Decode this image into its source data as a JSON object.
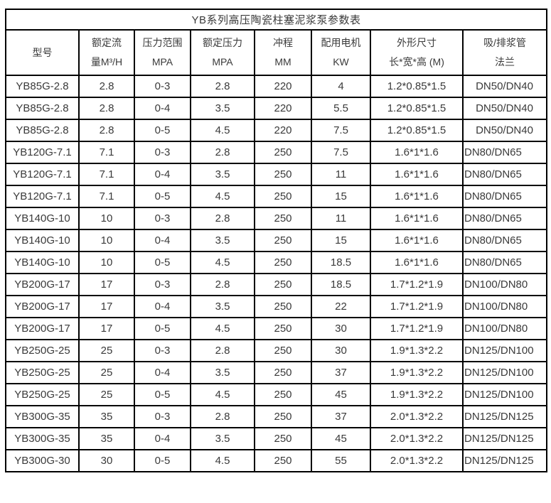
{
  "table": {
    "title": "YB系列高压陶瓷柱塞泥浆泵参数表",
    "headers": [
      {
        "line1": "型号",
        "line2": ""
      },
      {
        "line1": "额定流",
        "line2": "量M³/H"
      },
      {
        "line1": "压力范围",
        "line2": "MPA"
      },
      {
        "line1": "额定压力",
        "line2": "MPA"
      },
      {
        "line1": "冲程",
        "line2": "MM"
      },
      {
        "line1": "配用电机",
        "line2": "KW"
      },
      {
        "line1": "外形尺寸",
        "line2": "长*宽*高 (M)"
      },
      {
        "line1": "吸/排浆管",
        "line2": "法兰"
      }
    ],
    "rows": [
      [
        "YB85G-2.8",
        "2.8",
        "0-3",
        "2.8",
        "220",
        "4",
        "1.2*0.85*1.5",
        "DN50/DN40"
      ],
      [
        "YB85G-2.8",
        "2.8",
        "0-4",
        "3.5",
        "220",
        "5.5",
        "1.2*0.85*1.5",
        "DN50/DN40"
      ],
      [
        "YB85G-2.8",
        "2.8",
        "0-5",
        "4.5",
        "220",
        "7.5",
        "1.2*0.85*1.5",
        "DN50/DN40"
      ],
      [
        "YB120G-7.1",
        "7.1",
        "0-3",
        "2.8",
        "250",
        "7.5",
        "1.6*1*1.6",
        "DN80/DN65"
      ],
      [
        "YB120G-7.1",
        "7.1",
        "0-4",
        "3.5",
        "250",
        "11",
        "1.6*1*1.6",
        "DN80/DN65"
      ],
      [
        "YB120G-7.1",
        "7.1",
        "0-5",
        "4.5",
        "250",
        "15",
        "1.6*1*1.6",
        "DN80/DN65"
      ],
      [
        "YB140G-10",
        "10",
        "0-3",
        "2.8",
        "250",
        "11",
        "1.6*1*1.6",
        "DN80/DN65"
      ],
      [
        "YB140G-10",
        "10",
        "0-4",
        "3.5",
        "250",
        "15",
        "1.6*1*1.6",
        "DN80/DN65"
      ],
      [
        "YB140G-10",
        "10",
        "0-5",
        "4.5",
        "250",
        "18.5",
        "1.6*1*1.6",
        "DN80/DN65"
      ],
      [
        "YB200G-17",
        "17",
        "0-3",
        "2.8",
        "250",
        "18.5",
        "1.7*1.2*1.9",
        "DN100/DN80"
      ],
      [
        "YB200G-17",
        "17",
        "0-4",
        "3.5",
        "250",
        "22",
        "1.7*1.2*1.9",
        "DN100/DN80"
      ],
      [
        "YB200G-17",
        "17",
        "0-5",
        "4.5",
        "250",
        "30",
        "1.7*1.2*1.9",
        "DN100/DN80"
      ],
      [
        "YB250G-25",
        "25",
        "0-3",
        "2.8",
        "250",
        "30",
        "1.9*1.3*2.2",
        "DN125/DN100"
      ],
      [
        "YB250G-25",
        "25",
        "0-4",
        "3.5",
        "250",
        "37",
        "1.9*1.3*2.2",
        "DN125/DN100"
      ],
      [
        "YB250G-25",
        "25",
        "0-5",
        "4.5",
        "250",
        "45",
        "1.9*1.3*2.2",
        "DN125/DN100"
      ],
      [
        "YB300G-35",
        "35",
        "0-3",
        "2.8",
        "250",
        "37",
        "2.0*1.3*2.2",
        "DN125/DN125"
      ],
      [
        "YB300G-35",
        "35",
        "0-4",
        "3.5",
        "250",
        "45",
        "2.0*1.3*2.2",
        "DN125/DN125"
      ],
      [
        "YB300G-30",
        "30",
        "0-5",
        "4.5",
        "250",
        "55",
        "2.0*1.3*2.2",
        "DN125/DN125"
      ]
    ]
  }
}
